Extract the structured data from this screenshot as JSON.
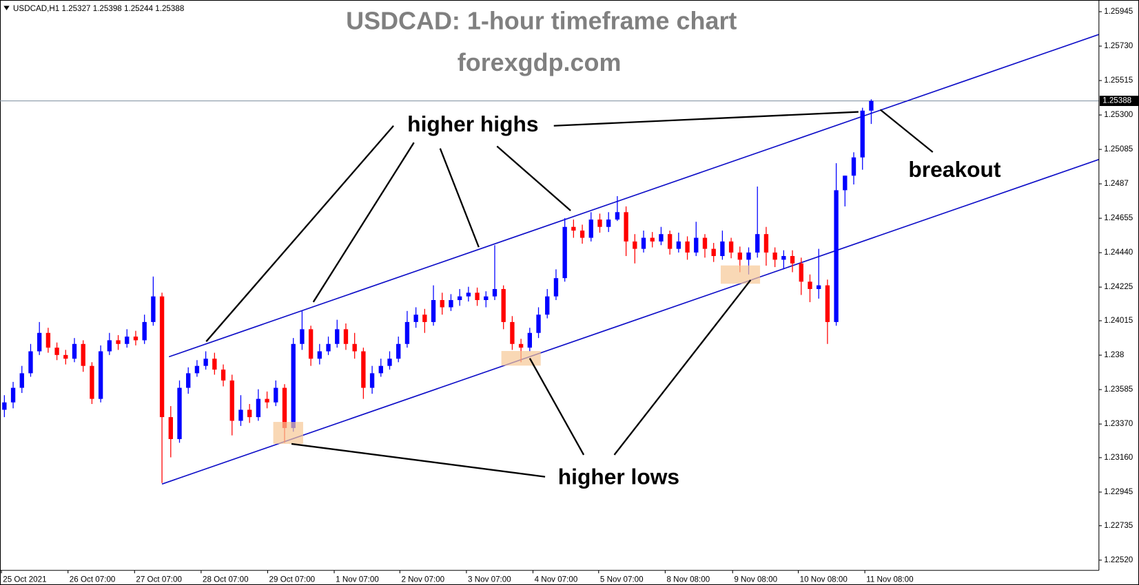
{
  "chart_data": {
    "type": "candlestick",
    "header": "USDCAD,H1  1.25327 1.25398 1.25244 1.25388",
    "title": "USDCAD: 1-hour timeframe chart",
    "subtitle": "forexgdp.com",
    "annotations": [
      "higher highs",
      "higher lows",
      "breakout"
    ],
    "up_color": "#0000ff",
    "down_color": "#ff0000",
    "trendline_color": "#1010c8",
    "price_line": 1.25388,
    "xlim": [
      -0.5,
      125
    ],
    "ylim": [
      1.22456,
      1.26018
    ],
    "xticks": [
      {
        "value": 0,
        "label": "25 Oct 2021"
      },
      {
        "value": 7.6,
        "label": "26 Oct 07:00"
      },
      {
        "value": 15.2,
        "label": "27 Oct 07:00"
      },
      {
        "value": 22.8,
        "label": "28 Oct 07:00"
      },
      {
        "value": 30.4,
        "label": "29 Oct 07:00"
      },
      {
        "value": 38,
        "label": "1 Nov 07:00"
      },
      {
        "value": 45.5,
        "label": "2 Nov 07:00"
      },
      {
        "value": 53.1,
        "label": "3 Nov 07:00"
      },
      {
        "value": 60.7,
        "label": "4 Nov 07:00"
      },
      {
        "value": 68.2,
        "label": "5 Nov 07:00"
      },
      {
        "value": 75.8,
        "label": "8 Nov 08:00"
      },
      {
        "value": 83.5,
        "label": "9 Nov 08:00"
      },
      {
        "value": 91,
        "label": "10 Nov 08:00"
      },
      {
        "value": 98.6,
        "label": "11 Nov 08:00"
      }
    ],
    "yticks": [
      {
        "value": 1.2252,
        "label": "1.22520"
      },
      1.22735,
      1.22945,
      {
        "value": 1.2316,
        "label": "1.23160"
      },
      {
        "value": 1.2337,
        "label": "1.23370"
      },
      1.23585,
      1.238,
      1.24015,
      1.24225,
      {
        "value": 1.2444,
        "label": "1.24440"
      },
      1.24655,
      1.2487,
      1.25085,
      {
        "value": 1.253,
        "label": "1.25300"
      },
      1.25515,
      {
        "value": 1.2573,
        "label": "1.25730"
      },
      1.25945
    ],
    "trendlines": [
      {
        "x": [
          18.8,
          125
        ],
        "y": [
          1.2379,
          1.25803
        ]
      },
      {
        "x": [
          18,
          125
        ],
        "y": [
          1.22995,
          1.25022
        ]
      }
    ],
    "open": [
      1.23459,
      1.23505,
      1.23596,
      1.23687,
      1.23824,
      1.23939,
      1.23847,
      1.23801,
      1.23778,
      1.2387,
      1.23733,
      1.23527,
      1.23824,
      1.23893,
      1.2387,
      1.23916,
      1.23893,
      1.24007,
      1.24167,
      1.23413,
      1.23276,
      1.23596,
      1.23687,
      1.23733,
      1.23778,
      1.2371,
      1.23642,
      1.2339,
      1.23459,
      1.23413,
      1.23527,
      1.23505,
      1.23596,
      1.23345,
      1.2387,
      1.23962,
      1.23778,
      1.23824,
      1.2387,
      1.23962,
      1.2387,
      1.23824,
      1.23596,
      1.23687,
      1.23733,
      1.23778,
      1.2387,
      1.24007,
      1.24053,
      1.24007,
      1.24144,
      1.24099,
      1.24144,
      1.24167,
      1.2419,
      1.24144,
      1.24167,
      1.24213,
      1.24007,
      1.2387,
      1.23847,
      1.23939,
      1.24053,
      1.24167,
      1.24281,
      1.24601,
      1.24578,
      1.24533,
      1.24647,
      1.24601,
      1.24647,
      1.24693,
      1.2451,
      1.24464,
      1.24533,
      1.2451,
      1.24556,
      1.24464,
      1.2451,
      1.24441,
      1.24533,
      1.24464,
      1.24419,
      1.2451,
      1.24441,
      1.24396,
      1.24441,
      1.24556,
      1.24441,
      1.24396,
      1.24419,
      1.24373,
      1.24259,
      1.24213,
      1.24236,
      1.24007,
      1.2483,
      1.24921,
      1.25035,
      1.25327
    ],
    "high": [
      1.2355,
      1.23633,
      1.23733,
      1.2387,
      1.24007,
      1.23971,
      1.23879,
      1.23833,
      1.23907,
      1.23893,
      1.23756,
      1.23861,
      1.23939,
      1.23925,
      1.23962,
      1.23952,
      1.24053,
      1.24291,
      1.2419,
      1.23482,
      1.23642,
      1.23724,
      1.23769,
      1.23824,
      1.23815,
      1.23742,
      1.23678,
      1.2355,
      1.23495,
      1.23587,
      1.23573,
      1.23642,
      1.23619,
      1.23907,
      1.24076,
      1.23984,
      1.2387,
      1.23916,
      1.24021,
      1.23998,
      1.23939,
      1.23847,
      1.23733,
      1.23778,
      1.23824,
      1.23916,
      1.24076,
      1.24099,
      1.24089,
      1.24236,
      1.2419,
      1.24181,
      1.24213,
      1.24227,
      1.24222,
      1.24199,
      1.24487,
      1.24236,
      1.24044,
      1.23902,
      1.23971,
      1.24099,
      1.24213,
      1.24336,
      1.24656,
      1.24647,
      1.24615,
      1.24693,
      1.24684,
      1.24693,
      1.24793,
      1.24729,
      1.24556,
      1.24578,
      1.24569,
      1.24601,
      1.24578,
      1.24565,
      1.24542,
      1.24633,
      1.24556,
      1.24501,
      1.24578,
      1.24533,
      1.24478,
      1.24473,
      1.24853,
      1.24601,
      1.24473,
      1.24455,
      1.24455,
      1.24409,
      1.24304,
      1.24464,
      1.24272,
      1.24999,
      1.24921,
      1.25067,
      1.25345,
      1.25398
    ],
    "low": [
      1.23413,
      1.23468,
      1.23564,
      1.23665,
      1.23801,
      1.23815,
      1.23769,
      1.23742,
      1.23756,
      1.23696,
      1.23495,
      1.23505,
      1.23801,
      1.23833,
      1.23847,
      1.23861,
      1.2387,
      1.23984,
      1.23002,
      1.23162,
      1.23253,
      1.23559,
      1.23665,
      1.2371,
      1.23678,
      1.23605,
      1.23299,
      1.23358,
      1.23377,
      1.2339,
      1.23468,
      1.23482,
      1.23253,
      1.23322,
      1.23833,
      1.23733,
      1.23742,
      1.23801,
      1.23847,
      1.23833,
      1.23778,
      1.23527,
      1.23559,
      1.23665,
      1.2371,
      1.23756,
      1.23847,
      1.23971,
      1.23939,
      1.23984,
      1.24053,
      1.24076,
      1.24108,
      1.24135,
      1.24108,
      1.24099,
      1.24144,
      1.23962,
      1.23833,
      1.23756,
      1.23824,
      1.23907,
      1.2403,
      1.24144,
      1.24259,
      1.24533,
      1.24496,
      1.2451,
      1.24565,
      1.24569,
      1.24638,
      1.24419,
      1.24373,
      1.24441,
      1.24473,
      1.24487,
      1.24428,
      1.24441,
      1.24396,
      1.24419,
      1.24409,
      1.24382,
      1.24396,
      1.24405,
      1.24318,
      1.24304,
      1.24409,
      1.24359,
      1.2435,
      1.24336,
      1.24318,
      1.24176,
      1.24131,
      1.24153,
      1.2387,
      1.23984,
      1.24729,
      1.24866,
      1.24958,
      1.25244
    ],
    "close": [
      1.23505,
      1.23596,
      1.23687,
      1.23824,
      1.23939,
      1.23847,
      1.23801,
      1.23778,
      1.2387,
      1.23733,
      1.23527,
      1.23824,
      1.23893,
      1.2387,
      1.23916,
      1.23893,
      1.24007,
      1.24167,
      1.23413,
      1.23276,
      1.23596,
      1.23687,
      1.23733,
      1.23778,
      1.2371,
      1.23642,
      1.2339,
      1.23459,
      1.23413,
      1.23527,
      1.23505,
      1.23596,
      1.23345,
      1.2387,
      1.23962,
      1.23778,
      1.23824,
      1.2387,
      1.23962,
      1.2387,
      1.23824,
      1.23596,
      1.23687,
      1.23733,
      1.23778,
      1.2387,
      1.24007,
      1.24053,
      1.24007,
      1.24144,
      1.24099,
      1.24144,
      1.24167,
      1.2419,
      1.24144,
      1.24167,
      1.24213,
      1.24007,
      1.2387,
      1.23847,
      1.23939,
      1.24053,
      1.24167,
      1.24281,
      1.24601,
      1.24578,
      1.24533,
      1.24647,
      1.24601,
      1.24647,
      1.24693,
      1.2451,
      1.24464,
      1.24533,
      1.2451,
      1.24556,
      1.24464,
      1.2451,
      1.24441,
      1.24533,
      1.24464,
      1.24419,
      1.2451,
      1.24441,
      1.24396,
      1.24441,
      1.24556,
      1.24441,
      1.24396,
      1.24419,
      1.24373,
      1.24259,
      1.24213,
      1.24236,
      1.24007,
      1.2483,
      1.24921,
      1.25035,
      1.25327,
      1.25388
    ]
  }
}
